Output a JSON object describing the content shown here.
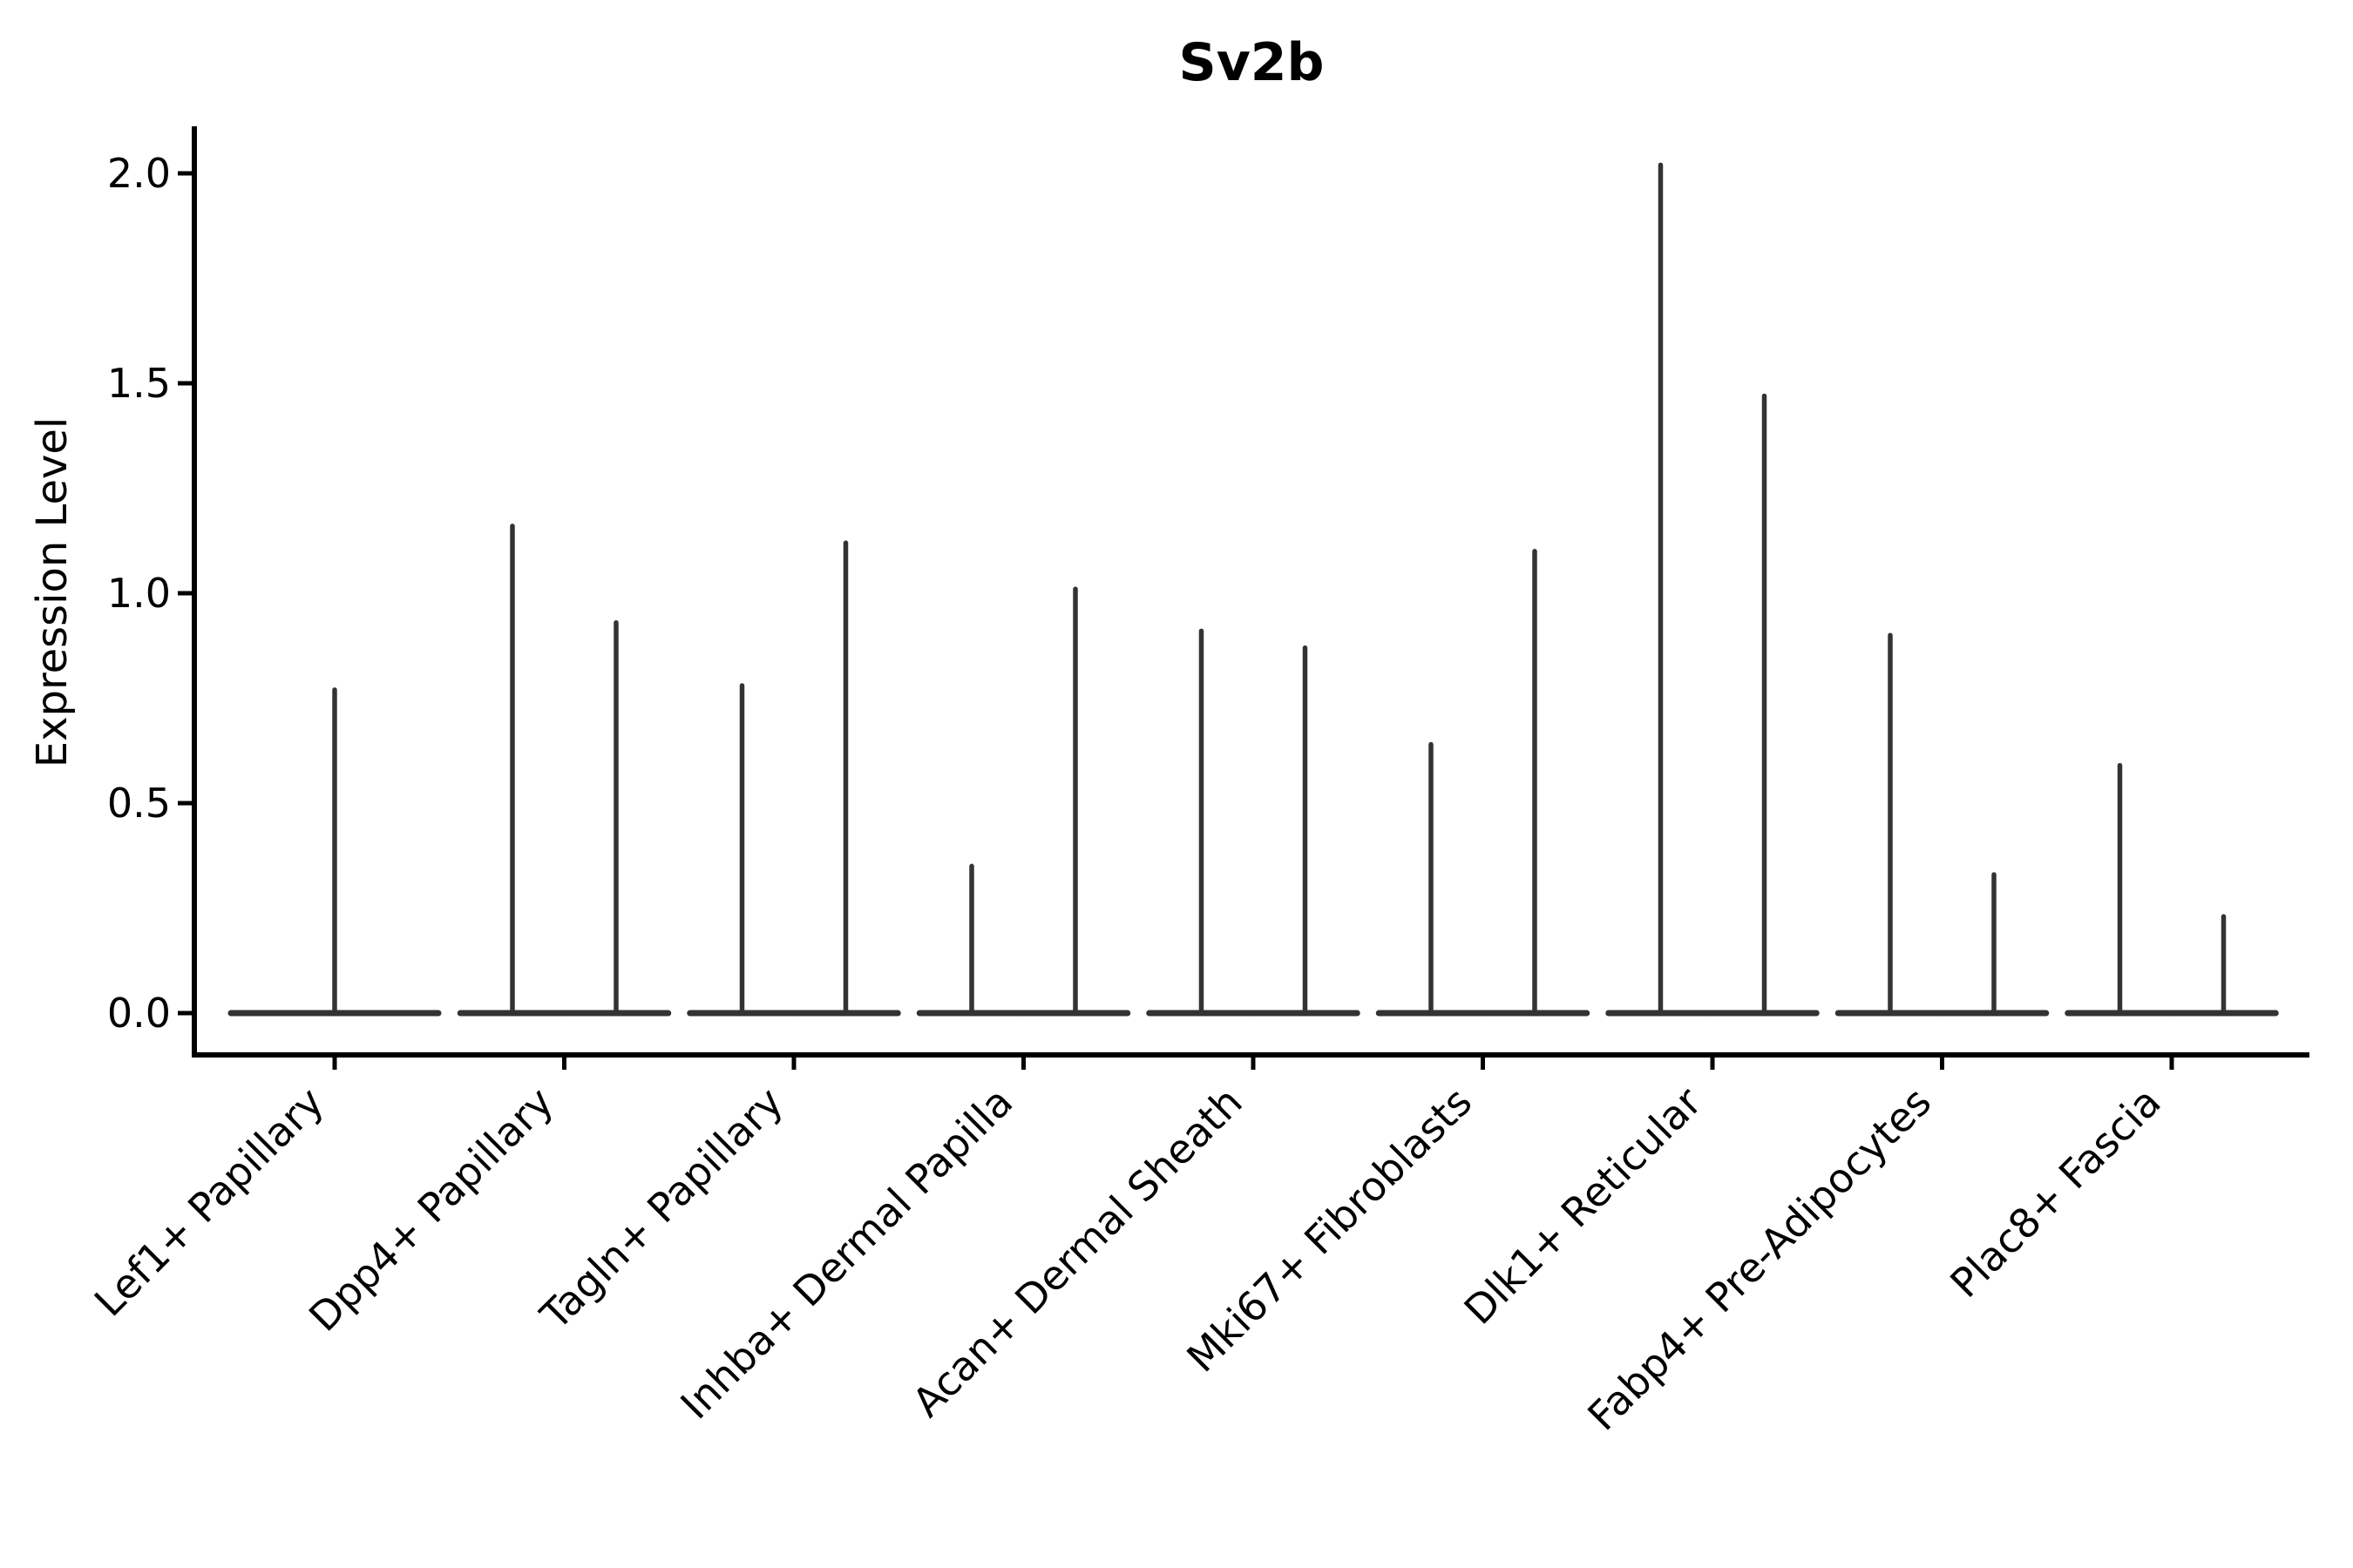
{
  "title": "Sv2b",
  "y_axis": {
    "label": "Expression Level",
    "ticks": [
      {
        "label": "2.0",
        "value": 2.0
      },
      {
        "label": "1.5",
        "value": 1.5
      },
      {
        "label": "1.0",
        "value": 1.0
      },
      {
        "label": "0.5",
        "value": 0.5
      },
      {
        "label": "0.0",
        "value": 0.0
      }
    ]
  },
  "x_axis": {
    "categories": [
      "Lef1+ Papillary",
      "Dpp4+ Papillary",
      "Tagln+ Papillary",
      "Inhba+ Dermal Papilla",
      "Acan+ Dermal Sheath",
      "Mki67+ Fibroblasts",
      "Dlk1+ Reticular",
      "Fabp4+ Pre-Adipocytes",
      "Plac8+ Fascia"
    ]
  },
  "chart_data": {
    "type": "violin",
    "title": "Sv2b",
    "xlabel": "",
    "ylabel": "Expression Level",
    "ylim": [
      0.0,
      2.1
    ],
    "yticks": [
      0.0,
      0.5,
      1.0,
      1.5,
      2.0
    ],
    "grid": false,
    "legend": "none",
    "categories": [
      "Lef1+ Papillary",
      "Dpp4+ Papillary",
      "Tagln+ Papillary",
      "Inhba+ Dermal Papilla",
      "Acan+ Dermal Sheath",
      "Mki67+ Fibroblasts",
      "Dlk1+ Reticular",
      "Fabp4+ Pre-Adipocytes",
      "Plac8+ Fascia"
    ],
    "violins": [
      {
        "category": "Lef1+ Papillary",
        "bulk_at": 0.0,
        "maxima": [
          0.77
        ]
      },
      {
        "category": "Dpp4+ Papillary",
        "bulk_at": 0.0,
        "maxima": [
          1.16,
          0.93
        ]
      },
      {
        "category": "Tagln+ Papillary",
        "bulk_at": 0.0,
        "maxima": [
          0.78,
          1.12
        ]
      },
      {
        "category": "Inhba+ Dermal Papilla",
        "bulk_at": 0.0,
        "maxima": [
          0.35,
          1.01
        ]
      },
      {
        "category": "Acan+ Dermal Sheath",
        "bulk_at": 0.0,
        "maxima": [
          0.91,
          0.87
        ]
      },
      {
        "category": "Mki67+ Fibroblasts",
        "bulk_at": 0.0,
        "maxima": [
          0.64,
          1.1
        ]
      },
      {
        "category": "Dlk1+ Reticular",
        "bulk_at": 0.0,
        "maxima": [
          2.02,
          1.47
        ]
      },
      {
        "category": "Fabp4+ Pre-Adipocytes",
        "bulk_at": 0.0,
        "maxima": [
          0.9,
          0.33
        ]
      },
      {
        "category": "Plac8+ Fascia",
        "bulk_at": 0.0,
        "maxima": [
          0.59,
          0.23
        ]
      }
    ],
    "layout_hints": {
      "violin_style": "distribution collapsed at 0: wide flat base at y=0 with thin vertical tail up to the max value",
      "violins_per_category": "first category has a single full-width violin; all others have two adjacent violins",
      "x_tick_label_rotation_deg": 45
    },
    "colors": {
      "violin_stroke": "#333333",
      "axis": "#000000",
      "background": "#ffffff"
    }
  }
}
